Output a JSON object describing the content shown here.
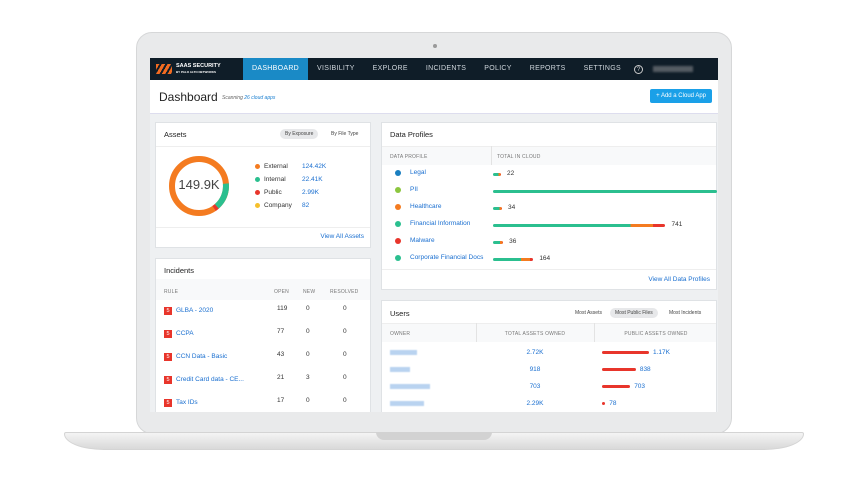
{
  "nav": {
    "brand": "SAAS SECURITY",
    "brand_sub": "BY PALO ALTO NETWORKS",
    "tabs": [
      "DASHBOARD",
      "VISIBILITY",
      "EXPLORE",
      "INCIDENTS",
      "POLICY",
      "REPORTS",
      "SETTINGS"
    ],
    "active": "DASHBOARD",
    "help": "?"
  },
  "header": {
    "title": "Dashboard",
    "scanning_prefix": "Scanning ",
    "scanning_link": "26 cloud apps",
    "add_button": "+ Add a Cloud App"
  },
  "assets": {
    "title": "Assets",
    "toggle": [
      "By Exposure",
      "By File Type"
    ],
    "active_toggle": "By Exposure",
    "total": "149.9K",
    "legend": [
      {
        "label": "External",
        "value": "124.42K",
        "color": "#f47b20"
      },
      {
        "label": "Internal",
        "value": "22.41K",
        "color": "#2bbf8f"
      },
      {
        "label": "Public",
        "value": "2.99K",
        "color": "#e8352b"
      },
      {
        "label": "Company",
        "value": "82",
        "color": "#f6c02c"
      }
    ],
    "view_all": "View All Assets"
  },
  "incidents": {
    "title": "Incidents",
    "columns": [
      "RULE",
      "OPEN",
      "NEW",
      "RESOLVED"
    ],
    "severity_label": "5",
    "rows": [
      {
        "rule": "GLBA - 2020",
        "open": "119",
        "new": "0",
        "resolved": "0"
      },
      {
        "rule": "CCPA",
        "open": "77",
        "new": "0",
        "resolved": "0"
      },
      {
        "rule": "CCN Data - Basic",
        "open": "43",
        "new": "0",
        "resolved": "0"
      },
      {
        "rule": "Credit Card data - CE...",
        "open": "21",
        "new": "3",
        "resolved": "0"
      },
      {
        "rule": "Tax IDs",
        "open": "17",
        "new": "0",
        "resolved": "0"
      }
    ]
  },
  "data_profiles": {
    "title": "Data Profiles",
    "columns": [
      "DATA PROFILE",
      "TOTAL IN CLOUD"
    ],
    "rows": [
      {
        "name": "Legal",
        "total": "22",
        "icon": "legal-icon",
        "color": "#1a7fc0",
        "fill": 0.03
      },
      {
        "name": "PII",
        "total": "",
        "icon": "pii-icon",
        "color": "#8cc63f",
        "fill": 1.0
      },
      {
        "name": "Healthcare",
        "total": "34",
        "icon": "healthcare-icon",
        "color": "#f47b20",
        "fill": 0.04
      },
      {
        "name": "Financial Information",
        "total": "741",
        "icon": "financial-icon",
        "color": "#2bbf8f",
        "fill": 0.77
      },
      {
        "name": "Malware",
        "total": "36",
        "icon": "malware-icon",
        "color": "#e8352b",
        "fill": 0.045
      },
      {
        "name": "Corporate Financial Docs",
        "total": "164",
        "icon": "corporate-docs-icon",
        "color": "#2bbf8f",
        "fill": 0.18
      }
    ],
    "view_all": "View All Data Profiles"
  },
  "users": {
    "title": "Users",
    "toggle": [
      "Most Assets",
      "Most Public Files",
      "Most Incidents"
    ],
    "active_toggle": "Most Public Files",
    "columns": [
      "OWNER",
      "TOTAL ASSETS OWNED",
      "PUBLIC ASSETS OWNED"
    ],
    "rows": [
      {
        "total": "2.72K",
        "public": "1.17K",
        "fill": 1.0
      },
      {
        "total": "918",
        "public": "838",
        "fill": 0.72
      },
      {
        "total": "703",
        "public": "703",
        "fill": 0.6
      },
      {
        "total": "2.29K",
        "public": "78",
        "fill": 0.07
      }
    ]
  }
}
